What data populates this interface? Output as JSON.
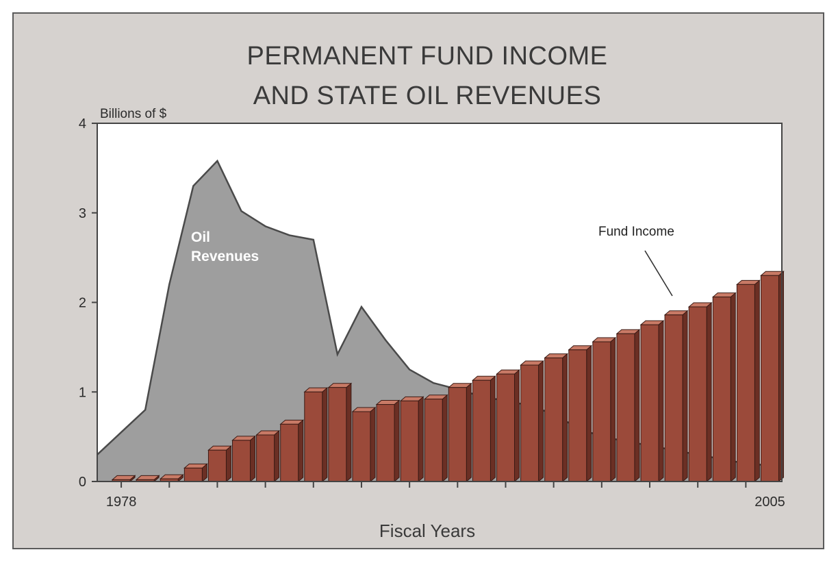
{
  "chart_data": {
    "type": "bar",
    "title_lines": [
      "PERMANENT FUND INCOME",
      "AND STATE OIL REVENUES"
    ],
    "ylabel": "Billions of $",
    "xlabel": "Fiscal Years",
    "ylim": [
      0,
      4
    ],
    "yticks": [
      "0",
      "1",
      "2",
      "3",
      "4"
    ],
    "xlim": [
      1977,
      2005.5
    ],
    "x_tick_labels": [
      {
        "x": 1978,
        "label": "1978"
      },
      {
        "x": 2005,
        "label": "2005"
      }
    ],
    "series": [
      {
        "name": "Fund Income",
        "type": "bar",
        "x": [
          1978,
          1979,
          1980,
          1981,
          1982,
          1983,
          1984,
          1985,
          1986,
          1987,
          1988,
          1989,
          1990,
          1991,
          1992,
          1993,
          1994,
          1995,
          1996,
          1997,
          1998,
          1999,
          2000,
          2001,
          2002,
          2003,
          2004,
          2005
        ],
        "values": [
          0.02,
          0.02,
          0.03,
          0.15,
          0.35,
          0.46,
          0.52,
          0.64,
          1.0,
          1.05,
          0.78,
          0.86,
          0.9,
          0.92,
          1.05,
          1.13,
          1.2,
          1.3,
          1.38,
          1.47,
          1.56,
          1.65,
          1.75,
          1.86,
          1.95,
          2.06,
          2.2,
          2.3
        ],
        "color": "#9b4a3a"
      },
      {
        "name": "Oil Revenues",
        "type": "area",
        "x": [
          1977,
          1978,
          1979,
          1980,
          1981,
          1982,
          1983,
          1984,
          1985,
          1986,
          1987,
          1988,
          1989,
          1990,
          1991,
          1992,
          1993,
          1994,
          1995,
          1996,
          1997,
          1998,
          1999,
          2000,
          2001,
          2002,
          2003,
          2004,
          2005
        ],
        "values": [
          0.3,
          0.55,
          0.8,
          2.2,
          3.3,
          3.58,
          3.02,
          2.85,
          2.75,
          2.7,
          1.42,
          1.95,
          1.58,
          1.25,
          1.1,
          1.03,
          0.95,
          0.9,
          0.85,
          0.75,
          0.6,
          0.5,
          0.45,
          0.4,
          0.35,
          0.3,
          0.25,
          0.2,
          0.18
        ],
        "color": "#9e9e9e"
      }
    ],
    "annotations": [
      {
        "text_lines": [
          "Oil",
          "Revenues"
        ],
        "series": "Oil Revenues"
      },
      {
        "text_lines": [
          "Fund Income"
        ],
        "series": "Fund Income"
      }
    ],
    "grid": false,
    "legend": "none",
    "colors": {
      "background": "#d6d2cf",
      "plot_background": "#ffffff",
      "bar_front": "#9b4a3a",
      "bar_side": "#6b2f24",
      "bar_top": "#c87a66",
      "oil_area": "#9e9e9e",
      "oil_line": "#4a4a4a",
      "axis": "#444444"
    }
  }
}
